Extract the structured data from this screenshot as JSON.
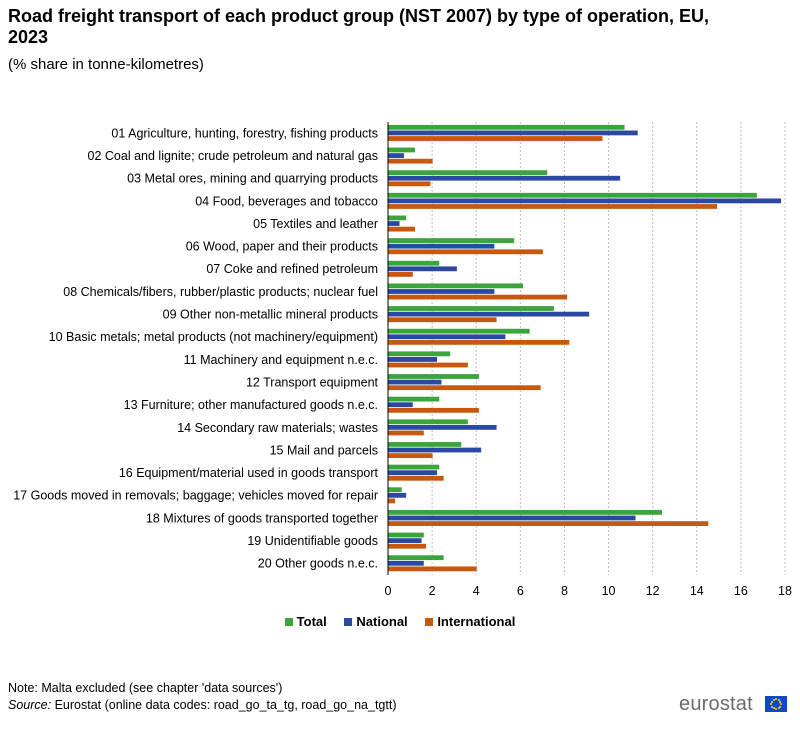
{
  "header": {
    "title": "Road freight transport of each product group (NST 2007) by type of operation, EU, 2023",
    "subtitle": "(% share in tonne-kilometres)"
  },
  "colors": {
    "total": "#3aa53a",
    "national": "#2a49a3",
    "international": "#c9580f",
    "grid": "#bdbdbd"
  },
  "chart_data": {
    "type": "bar",
    "orientation": "horizontal",
    "title": "Road freight transport of each product group (NST 2007) by type of operation, EU, 2023",
    "subtitle": "(% share in tonne-kilometres)",
    "xlim": [
      0,
      18
    ],
    "xticks": [
      0,
      2,
      4,
      6,
      8,
      10,
      12,
      14,
      16,
      18
    ],
    "grid": "vertical-dashed",
    "legend": "bottom",
    "categories": [
      "01 Agriculture, hunting, forestry, fishing products",
      "02 Coal and lignite; crude petroleum and natural gas",
      "03 Metal ores, mining and quarrying products",
      "04 Food, beverages and tobacco",
      "05 Textiles and leather",
      "06 Wood, paper and their products",
      "07 Coke and refined petroleum",
      "08 Chemicals/fibers, rubber/plastic products; nuclear fuel",
      "09 Other non-metallic mineral products",
      "10 Basic metals; metal products (not machinery/equipment)",
      "11 Machinery and equipment n.e.c.",
      "12 Transport equipment",
      "13 Furniture; other manufactured goods n.e.c.",
      "14 Secondary raw materials; wastes",
      "15 Mail and parcels",
      "16 Equipment/material used in goods transport",
      "17 Goods moved in removals; baggage; vehicles moved for repair",
      "18 Mixtures of goods transported together",
      "19 Unidentifiable goods",
      "20 Other goods n.e.c."
    ],
    "series": [
      {
        "name": "Total",
        "values": [
          10.7,
          1.2,
          7.2,
          16.7,
          0.8,
          5.7,
          2.3,
          6.1,
          7.5,
          6.4,
          2.8,
          4.1,
          2.3,
          3.6,
          3.3,
          2.3,
          0.6,
          12.4,
          1.6,
          2.5
        ]
      },
      {
        "name": "National",
        "values": [
          11.3,
          0.7,
          10.5,
          17.8,
          0.5,
          4.8,
          3.1,
          4.8,
          9.1,
          5.3,
          2.2,
          2.4,
          1.1,
          4.9,
          4.2,
          2.2,
          0.8,
          11.2,
          1.5,
          1.6
        ]
      },
      {
        "name": "International",
        "values": [
          9.7,
          2.0,
          1.9,
          14.9,
          1.2,
          7.0,
          1.1,
          8.1,
          4.9,
          8.2,
          3.6,
          6.9,
          4.1,
          1.6,
          2.0,
          2.5,
          0.3,
          14.5,
          1.7,
          4.0
        ]
      }
    ]
  },
  "legend": {
    "items": [
      "Total",
      "National",
      "International"
    ]
  },
  "footer": {
    "note": "Note: Malta excluded (see chapter 'data sources')",
    "source_label": "Source:",
    "source_text": " Eurostat (online data codes: road_go_ta_tg, road_go_na_tgtt)",
    "logo": "eurostat"
  }
}
